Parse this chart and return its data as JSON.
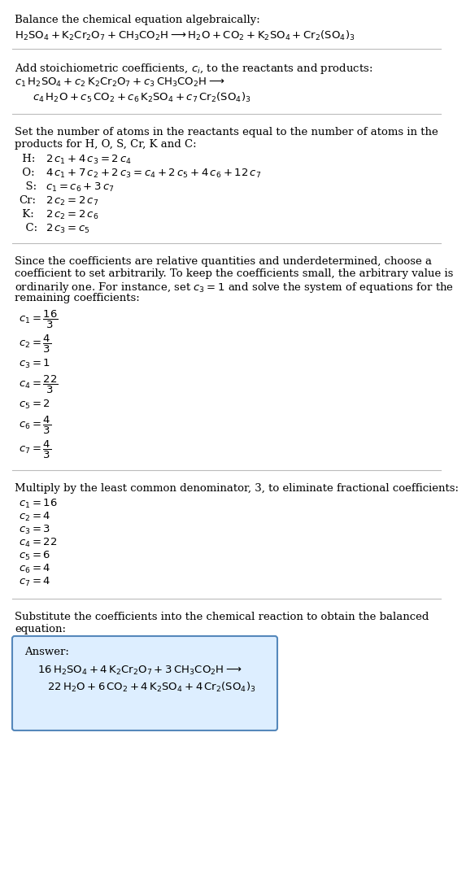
{
  "bg_color": "#ffffff",
  "text_color": "#000000",
  "divider_color": "#bbbbbb",
  "answer_box_color": "#ddeeff",
  "answer_box_border": "#5588bb",
  "sections": [
    {
      "type": "text",
      "content": "Balance the chemical equation algebraically:"
    },
    {
      "type": "math",
      "content": "$\\mathrm{H_2SO_4 + K_2Cr_2O_7 + CH_3CO_2H \\longrightarrow H_2O + CO_2 + K_2SO_4 + Cr_2(SO_4)_3}$"
    },
    {
      "type": "divider"
    },
    {
      "type": "text",
      "content": "Add stoichiometric coefficients, $c_i$, to the reactants and products:"
    },
    {
      "type": "math",
      "content": "$c_1\\,\\mathrm{H_2SO_4} + c_2\\,\\mathrm{K_2Cr_2O_7} + c_3\\,\\mathrm{CH_3CO_2H} \\longrightarrow$"
    },
    {
      "type": "math_indented",
      "content": "$c_4\\,\\mathrm{H_2O} + c_5\\,\\mathrm{CO_2} + c_6\\,\\mathrm{K_2SO_4} + c_7\\,\\mathrm{Cr_2(SO_4)_3}$"
    },
    {
      "type": "divider"
    },
    {
      "type": "text",
      "content": "Set the number of atoms in the reactants equal to the number of atoms in the\nproducts for H, O, S, Cr, K and C:"
    },
    {
      "type": "atom_lines",
      "lines": [
        [
          " H:",
          "$2\\,c_1 + 4\\,c_3 = 2\\,c_4$"
        ],
        [
          " O:",
          "$4\\,c_1 + 7\\,c_2 + 2\\,c_3 = c_4 + 2\\,c_5 + 4\\,c_6 + 12\\,c_7$"
        ],
        [
          "  S:",
          "$c_1 = c_6 + 3\\,c_7$"
        ],
        [
          "Cr:",
          "$2\\,c_2 = 2\\,c_7$"
        ],
        [
          " K:",
          "$2\\,c_2 = 2\\,c_6$"
        ],
        [
          "  C:",
          "$2\\,c_3 = c_5$"
        ]
      ]
    },
    {
      "type": "divider"
    },
    {
      "type": "text",
      "content": "Since the coefficients are relative quantities and underdetermined, choose a\ncoefficient to set arbitrarily. To keep the coefficients small, the arbitrary value is\nordinarily one. For instance, set $c_3 = 1$ and solve the system of equations for the\nremaining coefficients:"
    },
    {
      "type": "frac_lines",
      "lines": [
        "$c_1 = \\dfrac{16}{3}$",
        "$c_2 = \\dfrac{4}{3}$",
        "$c_3 = 1$",
        "$c_4 = \\dfrac{22}{3}$",
        "$c_5 = 2$",
        "$c_6 = \\dfrac{4}{3}$",
        "$c_7 = \\dfrac{4}{3}$"
      ]
    },
    {
      "type": "divider"
    },
    {
      "type": "text",
      "content": "Multiply by the least common denominator, 3, to eliminate fractional coefficients:"
    },
    {
      "type": "coeff_lines",
      "lines": [
        "$c_1 = 16$",
        "$c_2 = 4$",
        "$c_3 = 3$",
        "$c_4 = 22$",
        "$c_5 = 6$",
        "$c_6 = 4$",
        "$c_7 = 4$"
      ]
    },
    {
      "type": "divider"
    },
    {
      "type": "text",
      "content": "Substitute the coefficients into the chemical reaction to obtain the balanced\nequation:"
    },
    {
      "type": "answer_box",
      "label": "Answer:",
      "line1": "$16\\,\\mathrm{H_2SO_4} + 4\\,\\mathrm{K_2Cr_2O_7} + 3\\,\\mathrm{CH_3CO_2H} \\longrightarrow$",
      "line2": "$22\\,\\mathrm{H_2O} + 6\\,\\mathrm{CO_2} + 4\\,\\mathrm{K_2SO_4} + 4\\,\\mathrm{Cr_2(SO_4)_3}$"
    }
  ]
}
